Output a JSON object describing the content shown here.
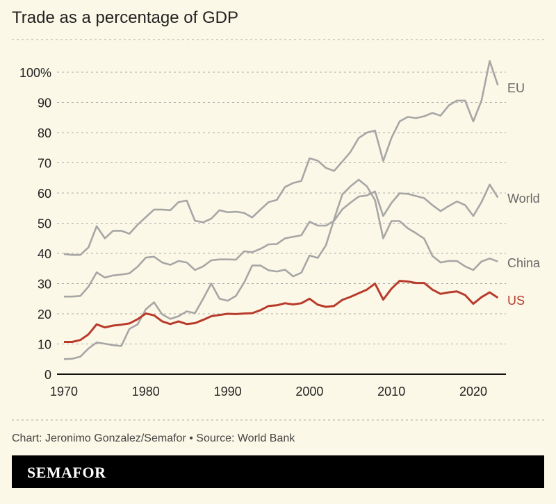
{
  "chart_data": {
    "type": "line",
    "title": "Trade as a percentage of GDP",
    "xlabel": "",
    "ylabel": "",
    "xlim": [
      1970,
      2023
    ],
    "ylim": [
      0,
      100
    ],
    "x_ticks": [
      "1970",
      "1980",
      "1990",
      "2000",
      "2010",
      "2020"
    ],
    "y_ticks": [
      "0",
      "10",
      "20",
      "30",
      "40",
      "50",
      "60",
      "70",
      "80",
      "90",
      "100%"
    ],
    "grid": true,
    "x_start": 1970,
    "series": [
      {
        "name": "EU",
        "color": "#a6a6a6",
        "values": [
          39.8,
          39.5,
          39.5,
          42,
          49,
          45,
          47.5,
          47.5,
          46.5,
          49.5,
          52,
          54.5,
          54.5,
          54.3,
          57,
          57.5,
          50.8,
          50.3,
          51.5,
          54.3,
          53.6,
          53.8,
          53.4,
          51.9,
          54.5,
          57,
          57.7,
          62,
          63.3,
          64,
          71.5,
          70.7,
          68.3,
          67.3,
          70.4,
          73.6,
          78.2,
          80,
          80.7,
          70.6,
          78.2,
          83.7,
          85.2,
          84.8,
          85.4,
          86.5,
          85.6,
          89,
          90.6,
          90.6,
          83.7,
          90.6,
          103.7,
          95.7
        ]
      },
      {
        "name": "World",
        "color": "#a6a6a6",
        "values": [
          25.7,
          25.7,
          25.9,
          29,
          33.7,
          32,
          32.7,
          33,
          33.4,
          35.6,
          38.6,
          38.9,
          37,
          36.2,
          37.5,
          37,
          34.5,
          35.7,
          37.7,
          38,
          38,
          37.9,
          40.7,
          40.4,
          41.5,
          43,
          43.1,
          45,
          45.5,
          46,
          50.5,
          49.2,
          49.2,
          50.8,
          54.6,
          56.8,
          58.8,
          59.2,
          60.5,
          52.4,
          56.7,
          59.9,
          59.7,
          59,
          58.3,
          56,
          54,
          55.7,
          57.2,
          56,
          52.4,
          57,
          62.8,
          58.5
        ]
      },
      {
        "name": "China",
        "color": "#a6a6a6",
        "values": [
          5,
          5.1,
          5.8,
          8.5,
          10.5,
          10.1,
          9.6,
          9.3,
          15,
          16.5,
          21.5,
          23.8,
          19.8,
          18.3,
          19.2,
          20.8,
          20.2,
          25,
          30,
          25,
          24.3,
          25.9,
          30.3,
          36,
          36,
          34.4,
          34,
          34.6,
          32.4,
          33.6,
          39.3,
          38.5,
          42.7,
          51.3,
          59.5,
          62.2,
          64.4,
          62.2,
          57.6,
          45,
          50.7,
          50.7,
          48.3,
          46.7,
          44.9,
          39.2,
          37,
          37.5,
          37.5,
          35.7,
          34.5,
          37.3,
          38.3,
          37.3
        ]
      },
      {
        "name": "US",
        "color": "#b83a2b",
        "values": [
          10.7,
          10.7,
          11.3,
          13.2,
          16.5,
          15.5,
          16.1,
          16.4,
          16.8,
          18.2,
          20.1,
          19.5,
          17.5,
          16.6,
          17.5,
          16.6,
          16.9,
          18,
          19.2,
          19.6,
          20,
          19.9,
          20.1,
          20.2,
          21.2,
          22.6,
          22.8,
          23.5,
          23.1,
          23.5,
          25,
          23,
          22.3,
          22.6,
          24.6,
          25.6,
          26.8,
          28,
          30,
          24.7,
          28.3,
          30.9,
          30.7,
          30.2,
          30.2,
          28,
          26.6,
          27.1,
          27.4,
          26.2,
          23.3,
          25.5,
          27.1,
          25.3
        ]
      }
    ]
  },
  "footer": {
    "source": "Chart: Jeronimo Gonzalez/Semafor • Source: World Bank",
    "brand": "SEMAFOR"
  }
}
